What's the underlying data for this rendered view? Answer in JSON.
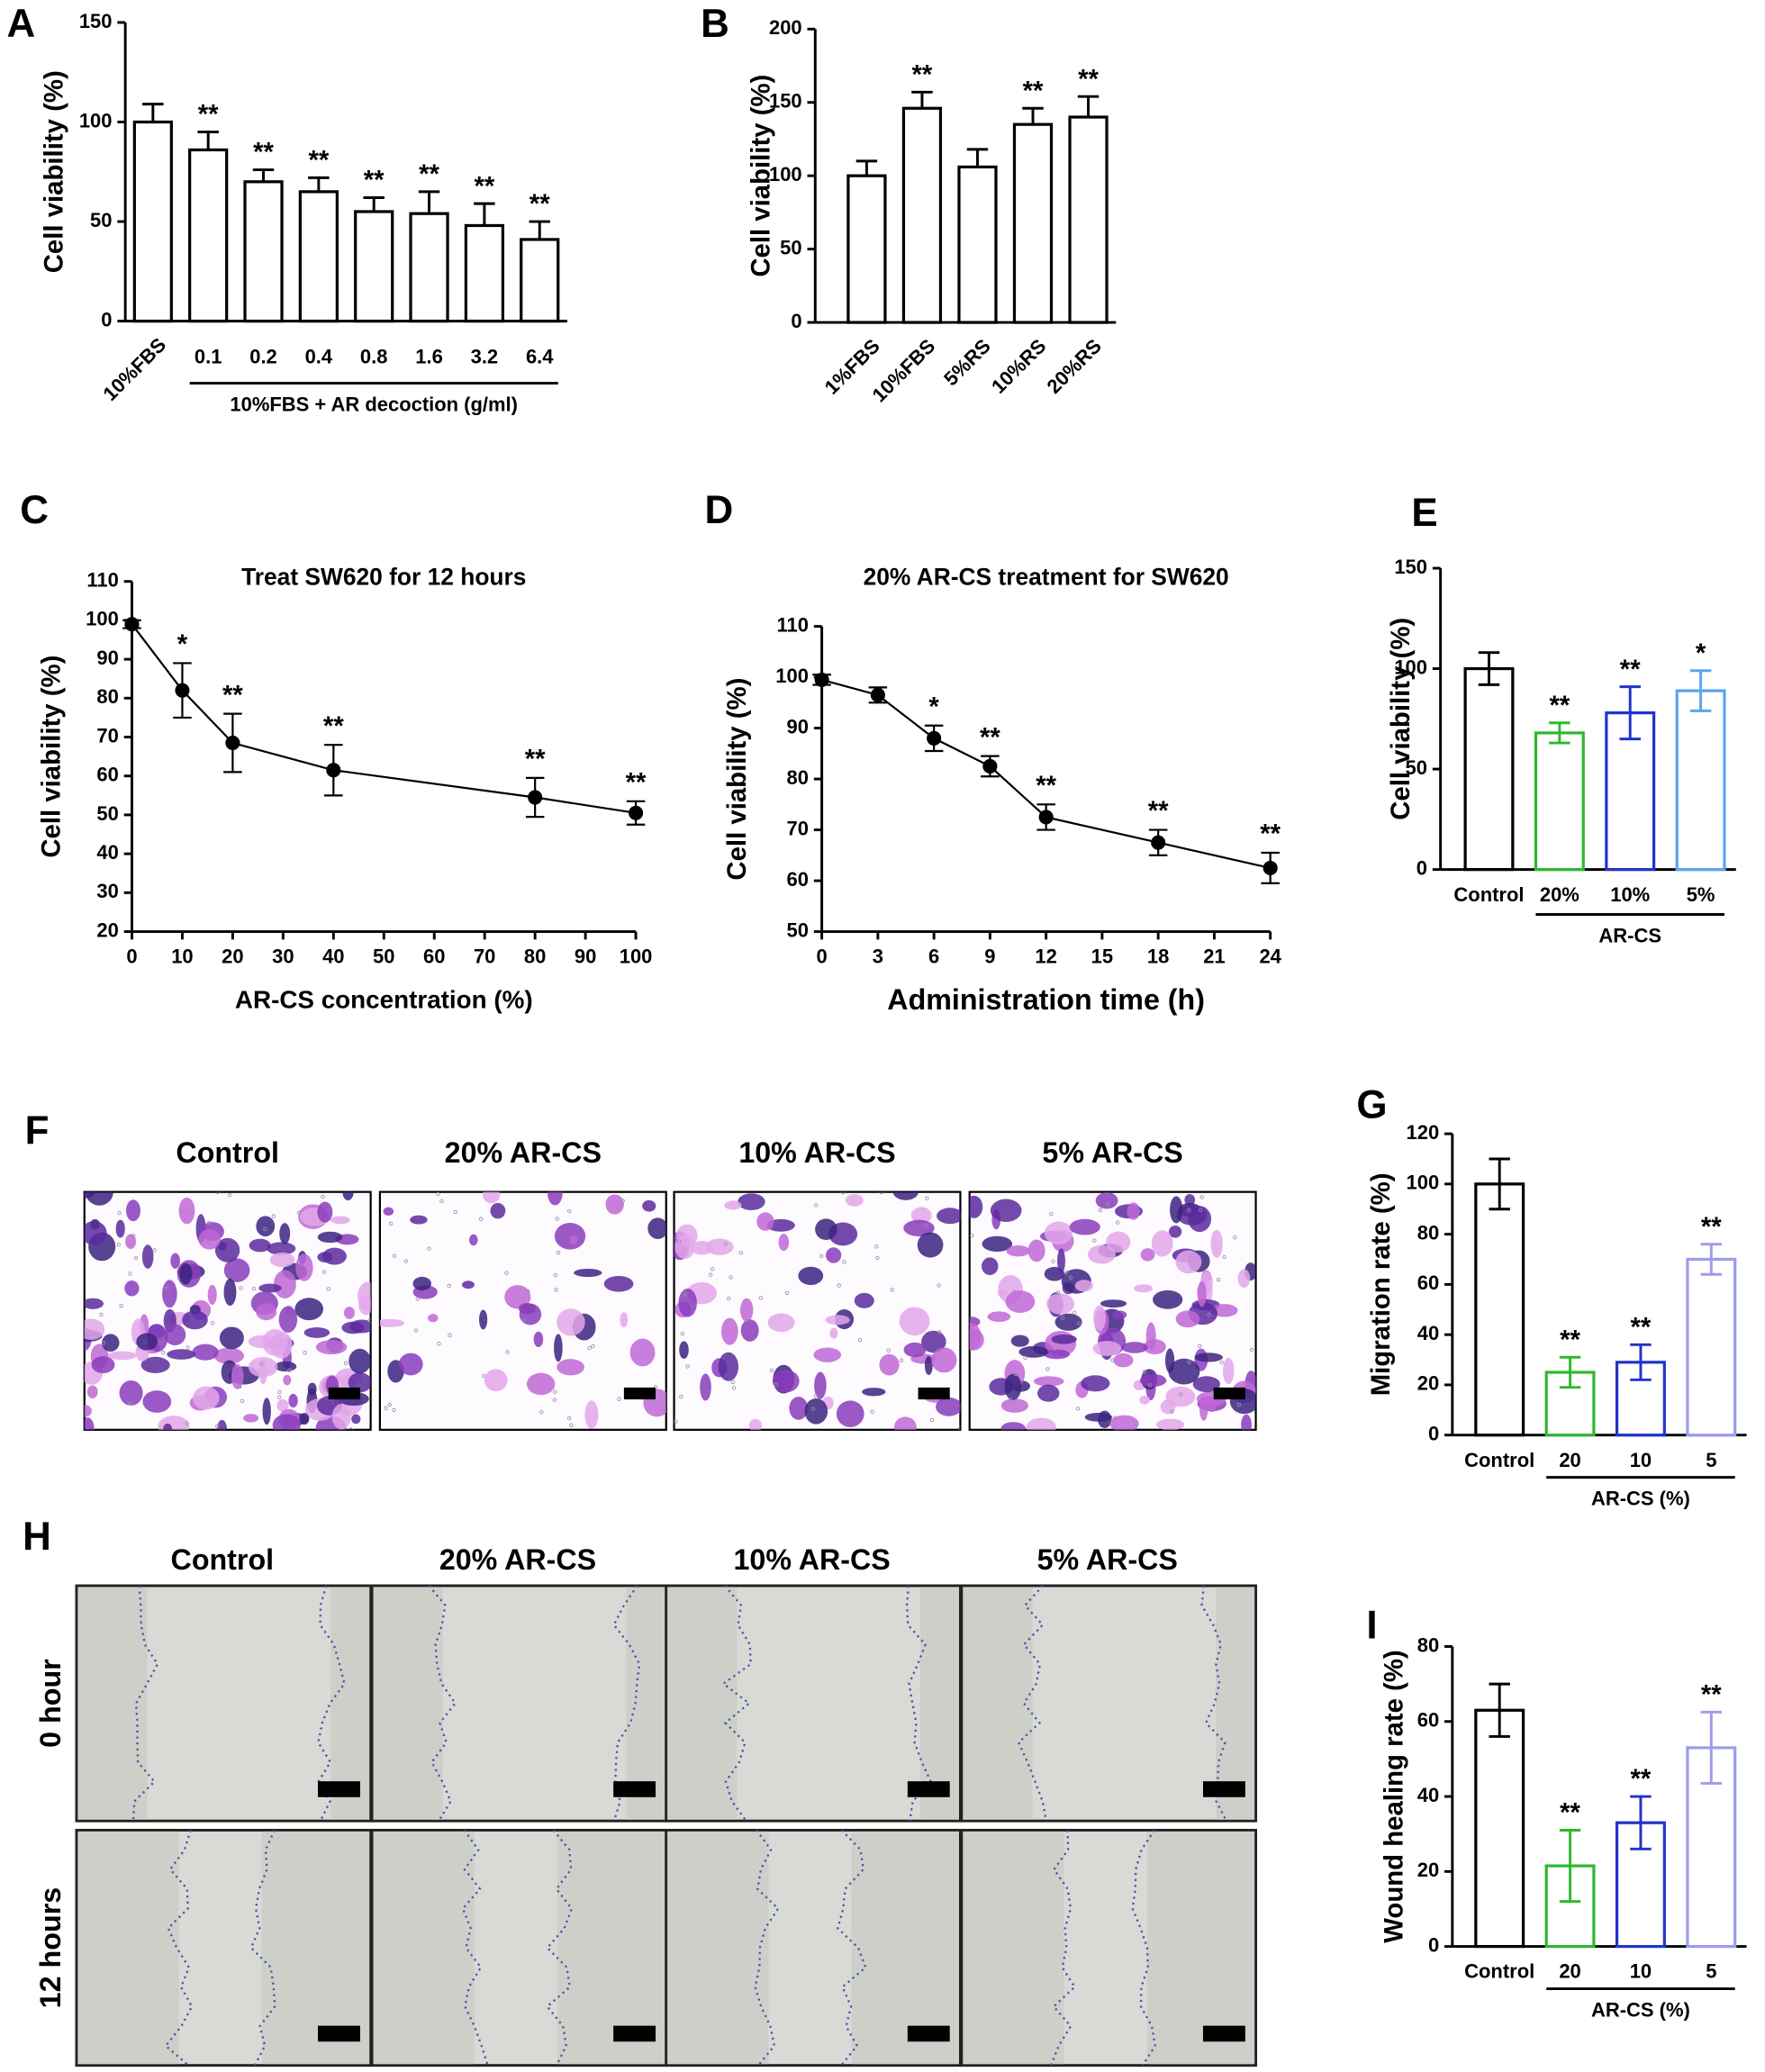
{
  "chart_data": [
    {
      "type": "bar",
      "panel": "A",
      "ylabel": "Cell viability  (%)",
      "group_label": "10%FBS + AR decoction (g/ml)",
      "categories": [
        "10%FBS",
        "0.1",
        "0.2",
        "0.4",
        "0.8",
        "1.6",
        "3.2",
        "6.4"
      ],
      "values": [
        100,
        86,
        70,
        65,
        55,
        54,
        48,
        41
      ],
      "errors": [
        9,
        9,
        6,
        7,
        7,
        11,
        11,
        9
      ],
      "annotations": [
        null,
        "**",
        "**",
        "**",
        "**",
        "**",
        "**",
        "**"
      ],
      "color": "#000000",
      "error_bars": "upper",
      "ylim": [
        0,
        150
      ],
      "yticks": [
        0,
        50,
        100,
        150
      ]
    },
    {
      "type": "bar",
      "panel": "B",
      "ylabel": "Cell viability  (%)",
      "categories": [
        "1%FBS",
        "10%FBS",
        "5%RS",
        "10%RS",
        "20%RS"
      ],
      "values": [
        100,
        146,
        106,
        135,
        140
      ],
      "errors": [
        10,
        11,
        12,
        11,
        14
      ],
      "annotations": [
        null,
        "**",
        null,
        "**",
        "**"
      ],
      "color": "#000000",
      "error_bars": "upper",
      "ylim": [
        0,
        200
      ],
      "yticks": [
        0,
        50,
        100,
        150,
        200
      ]
    },
    {
      "type": "line",
      "panel": "C",
      "title": "Treat SW620 for 12 hours",
      "xlabel": "AR-CS concentration   (%)",
      "ylabel": "Cell viability  (%)",
      "x": [
        0,
        10,
        20,
        40,
        80,
        100
      ],
      "values": [
        99,
        82,
        68.5,
        61.5,
        54.5,
        50.5
      ],
      "errors": [
        1,
        7,
        7.5,
        6.5,
        5,
        3
      ],
      "annotations": [
        null,
        "*",
        "**",
        "**",
        "**",
        "**"
      ],
      "color": "#000000",
      "xlim": [
        0,
        100
      ],
      "xticks": [
        0,
        10,
        20,
        30,
        40,
        50,
        60,
        70,
        80,
        90,
        100
      ],
      "ylim": [
        20,
        110
      ],
      "yticks": [
        20,
        30,
        40,
        50,
        60,
        70,
        80,
        90,
        100,
        110
      ]
    },
    {
      "type": "line",
      "panel": "D",
      "title": "20% AR-CS treatment for SW620",
      "xlabel": "Administration time (h)",
      "ylabel": "Cell viability  (%)",
      "x": [
        0,
        3,
        6,
        9,
        12,
        18,
        24
      ],
      "values": [
        99.5,
        96.5,
        88,
        82.5,
        72.5,
        67.5,
        62.5
      ],
      "errors": [
        1,
        1.5,
        2.5,
        2,
        2.5,
        2.5,
        3
      ],
      "annotations": [
        null,
        null,
        "*",
        "**",
        "**",
        "**",
        "**"
      ],
      "color": "#000000",
      "xlim": [
        0,
        24
      ],
      "xticks": [
        0,
        3,
        6,
        9,
        12,
        15,
        18,
        21,
        24
      ],
      "ylim": [
        50,
        110
      ],
      "yticks": [
        50,
        60,
        70,
        80,
        90,
        100,
        110
      ]
    },
    {
      "type": "bar",
      "panel": "E",
      "ylabel": "Cell viability  (%)",
      "group_label": "AR-CS",
      "categories": [
        "Control",
        "20%",
        "10%",
        "5%"
      ],
      "values": [
        100,
        68,
        78,
        89
      ],
      "errors": [
        8,
        5,
        13,
        10
      ],
      "annotations": [
        null,
        "**",
        "**",
        "*"
      ],
      "colors": [
        "#000000",
        "#2fb82f",
        "#2233cc",
        "#5aa5ee"
      ],
      "error_bars": "both",
      "ylim": [
        0,
        150
      ],
      "yticks": [
        0,
        50,
        100,
        150
      ]
    },
    {
      "type": "bar",
      "panel": "G",
      "ylabel": "Migration rate (%)",
      "group_label": "AR-CS (%)",
      "categories": [
        "Control",
        "20",
        "10",
        "5"
      ],
      "values": [
        100,
        25,
        29,
        70
      ],
      "errors": [
        10,
        6,
        7,
        6
      ],
      "annotations": [
        null,
        "**",
        "**",
        "**"
      ],
      "colors": [
        "#000000",
        "#2fb82f",
        "#2233cc",
        "#9c9cec"
      ],
      "error_bars": "both",
      "ylim": [
        0,
        120
      ],
      "yticks": [
        0,
        20,
        40,
        60,
        80,
        100,
        120
      ]
    },
    {
      "type": "bar",
      "panel": "I",
      "ylabel": "Wound healing rate (%)",
      "group_label": "AR-CS (%)",
      "categories": [
        "Control",
        "20",
        "10",
        "5"
      ],
      "values": [
        63,
        21.5,
        33,
        53
      ],
      "errors": [
        7,
        9.5,
        7,
        9.5
      ],
      "annotations": [
        null,
        "**",
        "**",
        "**"
      ],
      "colors": [
        "#000000",
        "#2fb82f",
        "#2233cc",
        "#9c9cec"
      ],
      "error_bars": "both",
      "ylim": [
        0,
        80
      ],
      "yticks": [
        0,
        20,
        40,
        60,
        80
      ]
    }
  ],
  "micrographs": {
    "F": {
      "panel": "F",
      "columns": [
        "Control",
        "20% AR-CS",
        "10% AR-CS",
        "5% AR-CS"
      ]
    },
    "H": {
      "panel": "H",
      "columns": [
        "Control",
        "20% AR-CS",
        "10% AR-CS",
        "5% AR-CS"
      ],
      "rows": [
        "0 hour",
        "12 hours"
      ]
    }
  }
}
